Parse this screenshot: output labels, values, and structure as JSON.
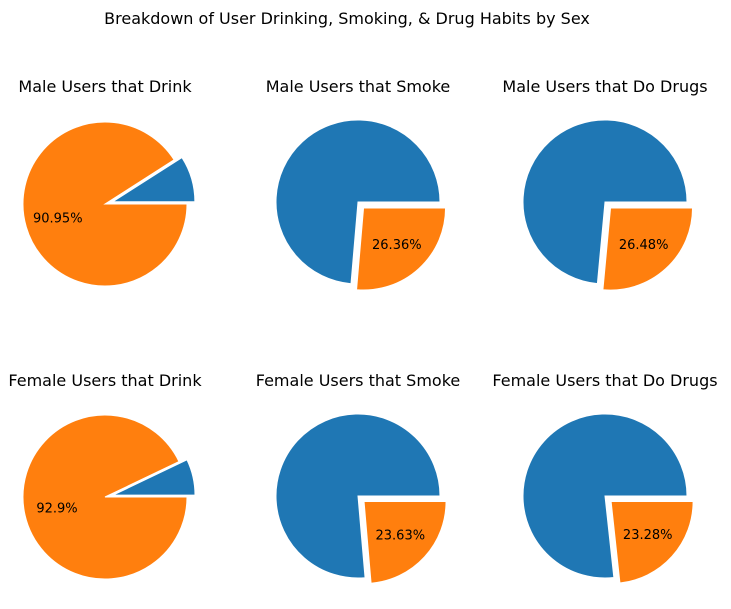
{
  "figure": {
    "suptitle": "Breakdown of User Drinking, Smoking, & Drug Habits by Sex"
  },
  "colors": {
    "series_1": "#1f77b4",
    "series_2": "#ff7f0e",
    "edge": "#ffffff"
  },
  "chart_data": [
    {
      "type": "pie",
      "title": "Male Users that Drink",
      "values": [
        9.05,
        90.95
      ],
      "colors": [
        "#1f77b4",
        "#ff7f0e"
      ],
      "explode": [
        0.1,
        0
      ],
      "labels": [
        "",
        "90.95%"
      ]
    },
    {
      "type": "pie",
      "title": "Male Users that Smoke",
      "values": [
        73.64,
        26.36
      ],
      "colors": [
        "#1f77b4",
        "#ff7f0e"
      ],
      "explode": [
        0,
        0.1
      ],
      "labels": [
        "",
        "26.36%"
      ]
    },
    {
      "type": "pie",
      "title": "Male Users that Do Drugs",
      "values": [
        73.52,
        26.48
      ],
      "colors": [
        "#1f77b4",
        "#ff7f0e"
      ],
      "explode": [
        0,
        0.1
      ],
      "labels": [
        "",
        "26.48%"
      ]
    },
    {
      "type": "pie",
      "title": "Female Users that Drink",
      "values": [
        7.1,
        92.9
      ],
      "colors": [
        "#1f77b4",
        "#ff7f0e"
      ],
      "explode": [
        0.1,
        0
      ],
      "labels": [
        "",
        "92.9%"
      ]
    },
    {
      "type": "pie",
      "title": "Female Users that Smoke",
      "values": [
        76.37,
        23.63
      ],
      "colors": [
        "#1f77b4",
        "#ff7f0e"
      ],
      "explode": [
        0,
        0.1
      ],
      "labels": [
        "",
        "23.63%"
      ]
    },
    {
      "type": "pie",
      "title": "Female Users that Do Drugs",
      "values": [
        76.72,
        23.28
      ],
      "colors": [
        "#1f77b4",
        "#ff7f0e"
      ],
      "explode": [
        0,
        0.1
      ],
      "labels": [
        "",
        "23.28%"
      ]
    }
  ]
}
